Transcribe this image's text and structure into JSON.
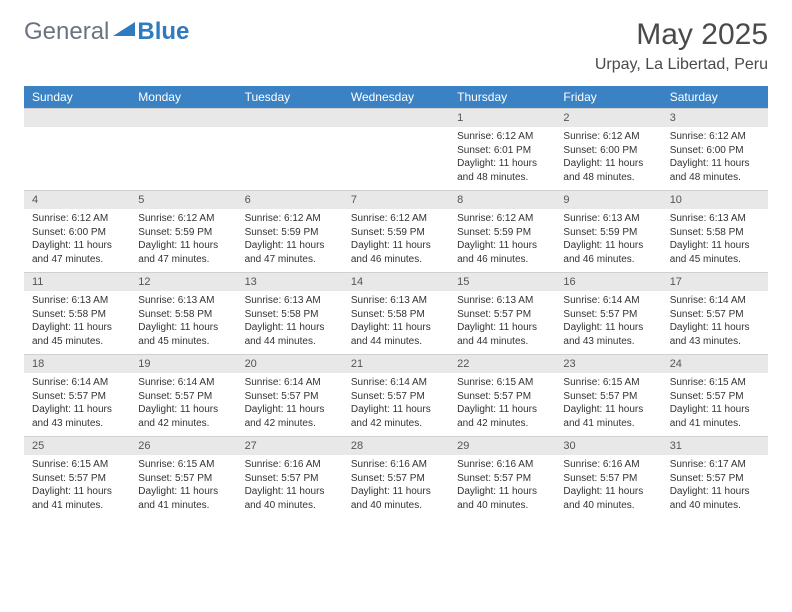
{
  "logo": {
    "text1": "General",
    "text2": "Blue"
  },
  "title": "May 2025",
  "location": "Urpay, La Libertad, Peru",
  "colors": {
    "header_bg": "#3b82c4",
    "header_text": "#ffffff",
    "daynum_bg": "#e8e8e8",
    "logo_gray": "#6b7280",
    "logo_blue": "#2f7bbf"
  },
  "weekdays": [
    "Sunday",
    "Monday",
    "Tuesday",
    "Wednesday",
    "Thursday",
    "Friday",
    "Saturday"
  ],
  "weeks": [
    {
      "nums": [
        "",
        "",
        "",
        "",
        "1",
        "2",
        "3"
      ],
      "cells": [
        null,
        null,
        null,
        null,
        {
          "sunrise": "Sunrise: 6:12 AM",
          "sunset": "Sunset: 6:01 PM",
          "day1": "Daylight: 11 hours",
          "day2": "and 48 minutes."
        },
        {
          "sunrise": "Sunrise: 6:12 AM",
          "sunset": "Sunset: 6:00 PM",
          "day1": "Daylight: 11 hours",
          "day2": "and 48 minutes."
        },
        {
          "sunrise": "Sunrise: 6:12 AM",
          "sunset": "Sunset: 6:00 PM",
          "day1": "Daylight: 11 hours",
          "day2": "and 48 minutes."
        }
      ]
    },
    {
      "nums": [
        "4",
        "5",
        "6",
        "7",
        "8",
        "9",
        "10"
      ],
      "cells": [
        {
          "sunrise": "Sunrise: 6:12 AM",
          "sunset": "Sunset: 6:00 PM",
          "day1": "Daylight: 11 hours",
          "day2": "and 47 minutes."
        },
        {
          "sunrise": "Sunrise: 6:12 AM",
          "sunset": "Sunset: 5:59 PM",
          "day1": "Daylight: 11 hours",
          "day2": "and 47 minutes."
        },
        {
          "sunrise": "Sunrise: 6:12 AM",
          "sunset": "Sunset: 5:59 PM",
          "day1": "Daylight: 11 hours",
          "day2": "and 47 minutes."
        },
        {
          "sunrise": "Sunrise: 6:12 AM",
          "sunset": "Sunset: 5:59 PM",
          "day1": "Daylight: 11 hours",
          "day2": "and 46 minutes."
        },
        {
          "sunrise": "Sunrise: 6:12 AM",
          "sunset": "Sunset: 5:59 PM",
          "day1": "Daylight: 11 hours",
          "day2": "and 46 minutes."
        },
        {
          "sunrise": "Sunrise: 6:13 AM",
          "sunset": "Sunset: 5:59 PM",
          "day1": "Daylight: 11 hours",
          "day2": "and 46 minutes."
        },
        {
          "sunrise": "Sunrise: 6:13 AM",
          "sunset": "Sunset: 5:58 PM",
          "day1": "Daylight: 11 hours",
          "day2": "and 45 minutes."
        }
      ]
    },
    {
      "nums": [
        "11",
        "12",
        "13",
        "14",
        "15",
        "16",
        "17"
      ],
      "cells": [
        {
          "sunrise": "Sunrise: 6:13 AM",
          "sunset": "Sunset: 5:58 PM",
          "day1": "Daylight: 11 hours",
          "day2": "and 45 minutes."
        },
        {
          "sunrise": "Sunrise: 6:13 AM",
          "sunset": "Sunset: 5:58 PM",
          "day1": "Daylight: 11 hours",
          "day2": "and 45 minutes."
        },
        {
          "sunrise": "Sunrise: 6:13 AM",
          "sunset": "Sunset: 5:58 PM",
          "day1": "Daylight: 11 hours",
          "day2": "and 44 minutes."
        },
        {
          "sunrise": "Sunrise: 6:13 AM",
          "sunset": "Sunset: 5:58 PM",
          "day1": "Daylight: 11 hours",
          "day2": "and 44 minutes."
        },
        {
          "sunrise": "Sunrise: 6:13 AM",
          "sunset": "Sunset: 5:57 PM",
          "day1": "Daylight: 11 hours",
          "day2": "and 44 minutes."
        },
        {
          "sunrise": "Sunrise: 6:14 AM",
          "sunset": "Sunset: 5:57 PM",
          "day1": "Daylight: 11 hours",
          "day2": "and 43 minutes."
        },
        {
          "sunrise": "Sunrise: 6:14 AM",
          "sunset": "Sunset: 5:57 PM",
          "day1": "Daylight: 11 hours",
          "day2": "and 43 minutes."
        }
      ]
    },
    {
      "nums": [
        "18",
        "19",
        "20",
        "21",
        "22",
        "23",
        "24"
      ],
      "cells": [
        {
          "sunrise": "Sunrise: 6:14 AM",
          "sunset": "Sunset: 5:57 PM",
          "day1": "Daylight: 11 hours",
          "day2": "and 43 minutes."
        },
        {
          "sunrise": "Sunrise: 6:14 AM",
          "sunset": "Sunset: 5:57 PM",
          "day1": "Daylight: 11 hours",
          "day2": "and 42 minutes."
        },
        {
          "sunrise": "Sunrise: 6:14 AM",
          "sunset": "Sunset: 5:57 PM",
          "day1": "Daylight: 11 hours",
          "day2": "and 42 minutes."
        },
        {
          "sunrise": "Sunrise: 6:14 AM",
          "sunset": "Sunset: 5:57 PM",
          "day1": "Daylight: 11 hours",
          "day2": "and 42 minutes."
        },
        {
          "sunrise": "Sunrise: 6:15 AM",
          "sunset": "Sunset: 5:57 PM",
          "day1": "Daylight: 11 hours",
          "day2": "and 42 minutes."
        },
        {
          "sunrise": "Sunrise: 6:15 AM",
          "sunset": "Sunset: 5:57 PM",
          "day1": "Daylight: 11 hours",
          "day2": "and 41 minutes."
        },
        {
          "sunrise": "Sunrise: 6:15 AM",
          "sunset": "Sunset: 5:57 PM",
          "day1": "Daylight: 11 hours",
          "day2": "and 41 minutes."
        }
      ]
    },
    {
      "nums": [
        "25",
        "26",
        "27",
        "28",
        "29",
        "30",
        "31"
      ],
      "cells": [
        {
          "sunrise": "Sunrise: 6:15 AM",
          "sunset": "Sunset: 5:57 PM",
          "day1": "Daylight: 11 hours",
          "day2": "and 41 minutes."
        },
        {
          "sunrise": "Sunrise: 6:15 AM",
          "sunset": "Sunset: 5:57 PM",
          "day1": "Daylight: 11 hours",
          "day2": "and 41 minutes."
        },
        {
          "sunrise": "Sunrise: 6:16 AM",
          "sunset": "Sunset: 5:57 PM",
          "day1": "Daylight: 11 hours",
          "day2": "and 40 minutes."
        },
        {
          "sunrise": "Sunrise: 6:16 AM",
          "sunset": "Sunset: 5:57 PM",
          "day1": "Daylight: 11 hours",
          "day2": "and 40 minutes."
        },
        {
          "sunrise": "Sunrise: 6:16 AM",
          "sunset": "Sunset: 5:57 PM",
          "day1": "Daylight: 11 hours",
          "day2": "and 40 minutes."
        },
        {
          "sunrise": "Sunrise: 6:16 AM",
          "sunset": "Sunset: 5:57 PM",
          "day1": "Daylight: 11 hours",
          "day2": "and 40 minutes."
        },
        {
          "sunrise": "Sunrise: 6:17 AM",
          "sunset": "Sunset: 5:57 PM",
          "day1": "Daylight: 11 hours",
          "day2": "and 40 minutes."
        }
      ]
    }
  ]
}
